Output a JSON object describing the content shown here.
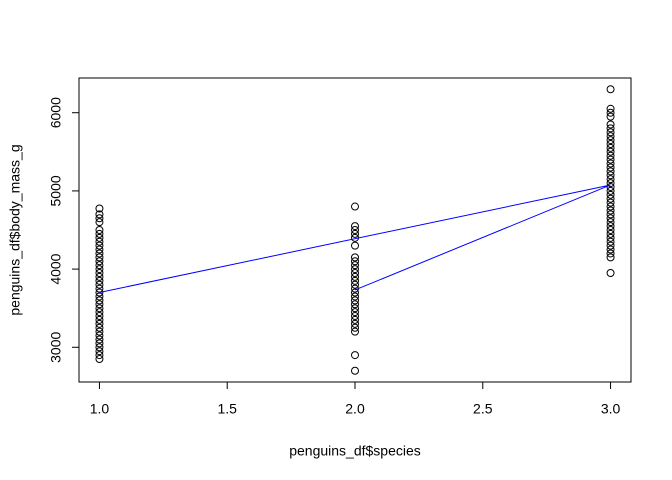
{
  "chart_data": {
    "type": "scatter",
    "x_label": "penguins_df$species",
    "y_label": "penguins_df$body_mass_g",
    "xlim": [
      0.92,
      3.08
    ],
    "ylim": [
      2556,
      6444
    ],
    "xticks": [
      {
        "value": 1,
        "label": "1.0"
      },
      {
        "value": 1.5,
        "label": "1.5"
      },
      {
        "value": 2,
        "label": "2.0"
      },
      {
        "value": 2.5,
        "label": "2.5"
      },
      {
        "value": 3,
        "label": "3.0"
      }
    ],
    "yticks": [
      3000,
      4000,
      5000,
      6000
    ],
    "series": [
      {
        "kind": "points",
        "color": "#000000",
        "x": [
          1,
          1,
          1,
          1,
          1,
          1,
          1,
          1,
          1,
          1,
          1,
          1,
          1,
          1,
          1,
          1,
          1,
          1,
          1,
          1,
          1,
          1,
          1,
          1,
          1,
          1,
          1,
          1,
          1,
          1,
          1,
          1,
          1,
          1,
          1,
          1,
          1,
          1
        ],
        "values": [
          4775,
          4700,
          4650,
          4600,
          4500,
          4450,
          4400,
          4350,
          4300,
          4250,
          4200,
          4150,
          4100,
          4050,
          4000,
          3950,
          3900,
          3850,
          3800,
          3750,
          3700,
          3650,
          3600,
          3550,
          3500,
          3450,
          3400,
          3350,
          3300,
          3250,
          3200,
          3150,
          3100,
          3050,
          3000,
          2950,
          2900,
          2850
        ]
      },
      {
        "kind": "points",
        "color": "#000000",
        "x": [
          2,
          2,
          2,
          2,
          2,
          2,
          2,
          2,
          2,
          2,
          2,
          2,
          2,
          2,
          2,
          2,
          2,
          2,
          2,
          2,
          2,
          2,
          2,
          2,
          2,
          2,
          2,
          2
        ],
        "values": [
          4800,
          4550,
          4500,
          4450,
          4400,
          4300,
          4150,
          4100,
          4050,
          4000,
          3950,
          3900,
          3850,
          3800,
          3750,
          3700,
          3650,
          3600,
          3550,
          3500,
          3450,
          3400,
          3350,
          3300,
          3250,
          3200,
          2900,
          2700
        ]
      },
      {
        "kind": "points",
        "color": "#000000",
        "x": [
          3,
          3,
          3,
          3,
          3,
          3,
          3,
          3,
          3,
          3,
          3,
          3,
          3,
          3,
          3,
          3,
          3,
          3,
          3,
          3,
          3,
          3,
          3,
          3,
          3,
          3,
          3,
          3,
          3,
          3,
          3,
          3,
          3,
          3,
          3,
          3,
          3,
          3,
          3,
          3
        ],
        "values": [
          6300,
          6050,
          6000,
          5950,
          5850,
          5800,
          5750,
          5700,
          5650,
          5600,
          5550,
          5500,
          5450,
          5400,
          5350,
          5300,
          5250,
          5200,
          5150,
          5100,
          5050,
          5000,
          4950,
          4900,
          4850,
          4800,
          4750,
          4700,
          4650,
          4600,
          4550,
          4500,
          4450,
          4400,
          4350,
          4300,
          4250,
          4200,
          4150,
          3950
        ]
      },
      {
        "kind": "line",
        "color": "#0000ff",
        "x": [
          1,
          3,
          2
        ],
        "values": [
          3701,
          5076,
          3733
        ]
      }
    ]
  }
}
